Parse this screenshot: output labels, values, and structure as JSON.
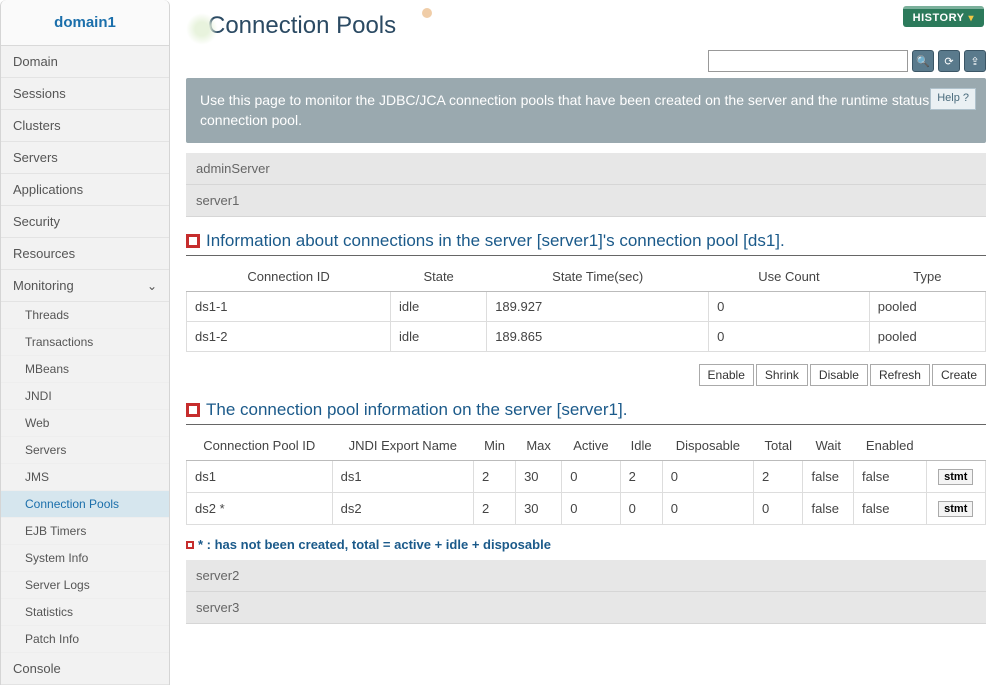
{
  "sidebar": {
    "header": "domain1",
    "items": [
      "Domain",
      "Sessions",
      "Clusters",
      "Servers",
      "Applications",
      "Security",
      "Resources"
    ],
    "monitoring_label": "Monitoring",
    "subitems": [
      "Threads",
      "Transactions",
      "MBeans",
      "JNDI",
      "Web",
      "Servers",
      "JMS",
      "Connection Pools",
      "EJB Timers",
      "System Info",
      "Server Logs",
      "Statistics",
      "Patch Info"
    ],
    "active_subitem": "Connection Pools",
    "console_label": "Console"
  },
  "header": {
    "history_label": "HISTORY",
    "page_title": "Connection Pools"
  },
  "banner": {
    "text": "Use this page to monitor the JDBC/JCA connection pools that have been created on the server and the runtime status of a connection pool.",
    "help_label": "Help"
  },
  "servers_top": [
    "adminServer",
    "server1"
  ],
  "section1": {
    "title": "Information about connections in the server [server1]'s connection pool [ds1].",
    "columns": [
      "Connection ID",
      "State",
      "State Time(sec)",
      "Use Count",
      "Type"
    ],
    "rows": [
      [
        "ds1-1",
        "idle",
        "189.927",
        "0",
        "pooled"
      ],
      [
        "ds1-2",
        "idle",
        "189.865",
        "0",
        "pooled"
      ]
    ]
  },
  "actions": [
    "Enable",
    "Shrink",
    "Disable",
    "Refresh",
    "Create"
  ],
  "section2": {
    "title": "The connection pool information on the server [server1].",
    "columns": [
      "Connection Pool ID",
      "JNDI Export Name",
      "Min",
      "Max",
      "Active",
      "Idle",
      "Disposable",
      "Total",
      "Wait",
      "Enabled",
      ""
    ],
    "rows": [
      [
        "ds1",
        "ds1",
        "2",
        "30",
        "0",
        "2",
        "0",
        "2",
        "false",
        "false",
        "stmt"
      ],
      [
        "ds2 *",
        "ds2",
        "2",
        "30",
        "0",
        "0",
        "0",
        "0",
        "false",
        "false",
        "stmt"
      ]
    ]
  },
  "note": "* : has not been created, total = active + idle + disposable",
  "servers_bottom": [
    "server2",
    "server3"
  ]
}
